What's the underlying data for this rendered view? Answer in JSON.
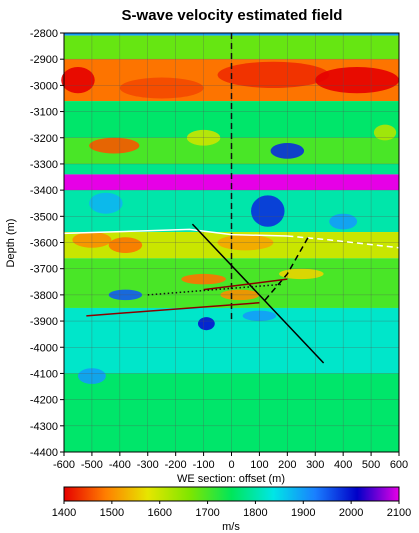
{
  "chart_data": {
    "type": "heatmap",
    "title": "S-wave velocity estimated field",
    "xlabel": "WE section: offset (m)",
    "ylabel": "Depth (m)",
    "xlim": [
      -600,
      600
    ],
    "ylim": [
      -4400,
      -2800
    ],
    "x_ticks": [
      -600,
      -500,
      -400,
      -300,
      -200,
      -100,
      0,
      100,
      200,
      300,
      400,
      500,
      600
    ],
    "y_ticks": [
      -2800,
      -2900,
      -3000,
      -3100,
      -3200,
      -3300,
      -3400,
      -3500,
      -3600,
      -3700,
      -3800,
      -3900,
      -4000,
      -4100,
      -4200,
      -4300,
      -4400
    ],
    "grid": true,
    "colorbar": {
      "label": "m/s",
      "range": [
        1400,
        2100
      ],
      "ticks": [
        1400,
        1500,
        1600,
        1700,
        1800,
        1900,
        2000,
        2100
      ],
      "colors": [
        "#e60000",
        "#ff7f00",
        "#e6e600",
        "#7fe600",
        "#00e65a",
        "#00e6e6",
        "#1a7fff",
        "#0000c8",
        "#e600e6"
      ]
    },
    "layers": [
      {
        "depth_top": -2800,
        "depth_bottom": -2810,
        "velocity": 1900
      },
      {
        "depth_top": -2810,
        "depth_bottom": -2900,
        "velocity": 1680
      },
      {
        "depth_top": -2900,
        "depth_bottom": -3060,
        "velocity": 1480
      },
      {
        "depth_top": -3060,
        "depth_bottom": -3200,
        "velocity": 1760
      },
      {
        "depth_top": -3200,
        "depth_bottom": -3300,
        "velocity": 1700
      },
      {
        "depth_top": -3300,
        "depth_bottom": -3340,
        "velocity": 1780
      },
      {
        "depth_top": -3340,
        "depth_bottom": -3400,
        "velocity": 2100
      },
      {
        "depth_top": -3400,
        "depth_bottom": -3560,
        "velocity": 1800
      },
      {
        "depth_top": -3560,
        "depth_bottom": -3660,
        "velocity": 1600
      },
      {
        "depth_top": -3660,
        "depth_bottom": -3850,
        "velocity": 1700
      },
      {
        "depth_top": -3850,
        "depth_bottom": -4100,
        "velocity": 1820
      },
      {
        "depth_top": -4100,
        "depth_bottom": -4400,
        "velocity": 1760
      }
    ],
    "anomalies": [
      {
        "x": -550,
        "y": -2980,
        "rx": 60,
        "ry": 50,
        "velocity": 1400
      },
      {
        "x": -250,
        "y": -3010,
        "rx": 150,
        "ry": 40,
        "velocity": 1450
      },
      {
        "x": 150,
        "y": -2960,
        "rx": 200,
        "ry": 50,
        "velocity": 1430
      },
      {
        "x": 450,
        "y": -2980,
        "rx": 150,
        "ry": 50,
        "velocity": 1400
      },
      {
        "x": 550,
        "y": -3180,
        "rx": 40,
        "ry": 30,
        "velocity": 1620
      },
      {
        "x": -420,
        "y": -3230,
        "rx": 90,
        "ry": 30,
        "velocity": 1460
      },
      {
        "x": -100,
        "y": -3200,
        "rx": 60,
        "ry": 30,
        "velocity": 1600
      },
      {
        "x": 200,
        "y": -3250,
        "rx": 60,
        "ry": 30,
        "velocity": 1980
      },
      {
        "x": 130,
        "y": -3480,
        "rx": 60,
        "ry": 60,
        "velocity": 1980
      },
      {
        "x": -450,
        "y": -3450,
        "rx": 60,
        "ry": 40,
        "velocity": 1880
      },
      {
        "x": 400,
        "y": -3520,
        "rx": 50,
        "ry": 30,
        "velocity": 1900
      },
      {
        "x": -500,
        "y": -3590,
        "rx": 70,
        "ry": 30,
        "velocity": 1500
      },
      {
        "x": -380,
        "y": -3610,
        "rx": 60,
        "ry": 30,
        "velocity": 1480
      },
      {
        "x": 50,
        "y": -3600,
        "rx": 100,
        "ry": 30,
        "velocity": 1520
      },
      {
        "x": -100,
        "y": -3740,
        "rx": 80,
        "ry": 20,
        "velocity": 1480
      },
      {
        "x": 250,
        "y": -3720,
        "rx": 80,
        "ry": 20,
        "velocity": 1560
      },
      {
        "x": -380,
        "y": -3800,
        "rx": 60,
        "ry": 20,
        "velocity": 1950
      },
      {
        "x": 30,
        "y": -3800,
        "rx": 70,
        "ry": 20,
        "velocity": 1500
      },
      {
        "x": -90,
        "y": -3910,
        "rx": 30,
        "ry": 25,
        "velocity": 2000
      },
      {
        "x": 100,
        "y": -3880,
        "rx": 60,
        "ry": 20,
        "velocity": 1900
      },
      {
        "x": -500,
        "y": -4110,
        "rx": 50,
        "ry": 30,
        "velocity": 1900
      }
    ],
    "overlays": [
      {
        "color": "#111111",
        "style": "dashed",
        "x": [
          0,
          0
        ],
        "y": [
          -2800,
          -3900
        ]
      },
      {
        "color": "#ffffff",
        "style": "solid",
        "x": [
          -600,
          -300,
          -150,
          0,
          200
        ],
        "y": [
          -3565,
          -3555,
          -3550,
          -3570,
          -3575
        ]
      },
      {
        "color": "#ffffff",
        "style": "dashed",
        "x": [
          200,
          350,
          600
        ],
        "y": [
          -3575,
          -3590,
          -3620
        ]
      },
      {
        "color": "#000000",
        "style": "solid",
        "x": [
          -140,
          330
        ],
        "y": [
          -3530,
          -4060
        ]
      },
      {
        "color": "#000000",
        "style": "dashed",
        "x": [
          120,
          200,
          280
        ],
        "y": [
          -3820,
          -3720,
          -3570
        ]
      },
      {
        "color": "#8b0000",
        "style": "solid",
        "x": [
          -520,
          100
        ],
        "y": [
          -3880,
          -3830
        ]
      },
      {
        "color": "#8b0000",
        "style": "solid",
        "x": [
          -100,
          200
        ],
        "y": [
          -3780,
          -3740
        ]
      },
      {
        "color": "#111111",
        "style": "dotted",
        "x": [
          -300,
          180
        ],
        "y": [
          -3800,
          -3760
        ]
      }
    ]
  }
}
